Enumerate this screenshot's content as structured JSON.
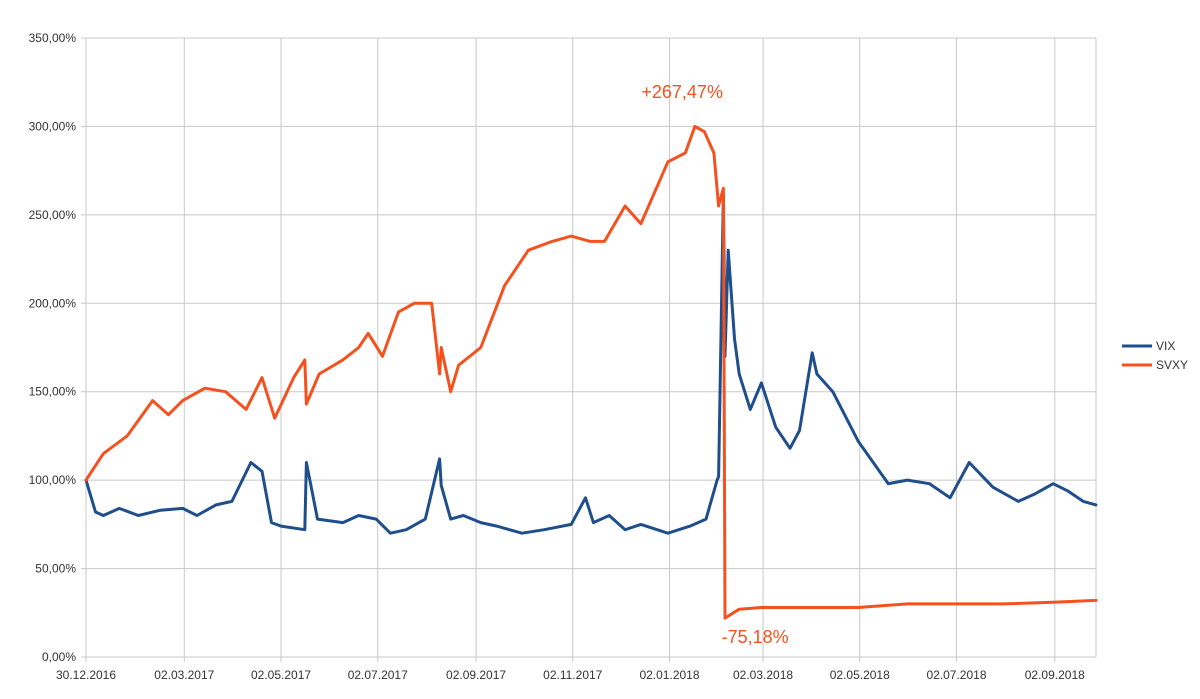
{
  "chart_data": {
    "type": "line",
    "title": "",
    "xlabel": "",
    "ylabel": "",
    "ylim": [
      0,
      350
    ],
    "y_unit": "%",
    "y_ticks": [
      0,
      50,
      100,
      150,
      200,
      250,
      300,
      350
    ],
    "y_tick_labels": [
      "0,00%",
      "50,00%",
      "100,00%",
      "150,00%",
      "200,00%",
      "250,00%",
      "300,00%",
      "350,00%"
    ],
    "x_range": [
      "2016-12-30",
      "2018-09-28"
    ],
    "x_ticks": [
      "2016-12-30",
      "2017-03-02",
      "2017-05-02",
      "2017-07-02",
      "2017-09-02",
      "2017-11-02",
      "2018-01-02",
      "2018-03-02",
      "2018-05-02",
      "2018-07-02",
      "2018-09-02"
    ],
    "x_tick_labels": [
      "30.12.2016",
      "02.03.2017",
      "02.05.2017",
      "02.07.2017",
      "02.09.2017",
      "02.11.2017",
      "02.01.2018",
      "02.03.2018",
      "02.05.2018",
      "02.07.2018",
      "02.09.2018"
    ],
    "grid": true,
    "legend_position": "right",
    "series": [
      {
        "name": "VIX",
        "color": "#1f4e8c",
        "x": [
          "2016-12-30",
          "2017-01-05",
          "2017-01-10",
          "2017-01-20",
          "2017-02-01",
          "2017-02-15",
          "2017-03-01",
          "2017-03-10",
          "2017-03-22",
          "2017-04-01",
          "2017-04-13",
          "2017-04-20",
          "2017-04-26",
          "2017-05-02",
          "2017-05-17",
          "2017-05-18",
          "2017-05-25",
          "2017-06-10",
          "2017-06-20",
          "2017-07-01",
          "2017-07-10",
          "2017-07-20",
          "2017-08-01",
          "2017-08-10",
          "2017-08-11",
          "2017-08-17",
          "2017-08-25",
          "2017-09-05",
          "2017-09-15",
          "2017-10-01",
          "2017-10-15",
          "2017-11-01",
          "2017-11-10",
          "2017-11-15",
          "2017-11-25",
          "2017-12-05",
          "2017-12-15",
          "2018-01-01",
          "2018-01-15",
          "2018-01-25",
          "2018-02-01",
          "2018-02-02",
          "2018-02-05",
          "2018-02-06",
          "2018-02-08",
          "2018-02-12",
          "2018-02-15",
          "2018-02-22",
          "2018-03-01",
          "2018-03-10",
          "2018-03-19",
          "2018-03-25",
          "2018-04-02",
          "2018-04-05",
          "2018-04-15",
          "2018-05-01",
          "2018-05-20",
          "2018-06-01",
          "2018-06-15",
          "2018-06-28",
          "2018-07-10",
          "2018-07-25",
          "2018-08-10",
          "2018-08-20",
          "2018-09-01",
          "2018-09-10",
          "2018-09-20",
          "2018-09-28"
        ],
        "values": [
          100,
          82,
          80,
          84,
          80,
          83,
          84,
          80,
          86,
          88,
          110,
          105,
          76,
          74,
          72,
          110,
          78,
          76,
          80,
          78,
          70,
          72,
          78,
          112,
          97,
          78,
          80,
          76,
          74,
          70,
          72,
          75,
          90,
          76,
          80,
          72,
          75,
          70,
          74,
          78,
          100,
          102,
          262,
          170,
          230,
          180,
          160,
          140,
          155,
          130,
          118,
          128,
          172,
          160,
          150,
          122,
          98,
          100,
          98,
          90,
          110,
          96,
          88,
          92,
          98,
          94,
          88,
          86
        ]
      },
      {
        "name": "SVXY",
        "color": "#f4511e",
        "x": [
          "2016-12-30",
          "2017-01-10",
          "2017-01-25",
          "2017-02-10",
          "2017-02-20",
          "2017-03-01",
          "2017-03-15",
          "2017-03-28",
          "2017-04-10",
          "2017-04-20",
          "2017-04-28",
          "2017-05-10",
          "2017-05-17",
          "2017-05-18",
          "2017-05-26",
          "2017-06-10",
          "2017-06-20",
          "2017-06-26",
          "2017-07-05",
          "2017-07-15",
          "2017-07-25",
          "2017-08-05",
          "2017-08-10",
          "2017-08-11",
          "2017-08-17",
          "2017-08-22",
          "2017-09-05",
          "2017-09-20",
          "2017-10-05",
          "2017-10-20",
          "2017-11-01",
          "2017-11-13",
          "2017-11-22",
          "2017-12-05",
          "2017-12-15",
          "2018-01-01",
          "2018-01-12",
          "2018-01-18",
          "2018-01-24",
          "2018-01-30",
          "2018-02-02",
          "2018-02-05",
          "2018-02-06",
          "2018-02-15",
          "2018-03-01",
          "2018-04-01",
          "2018-05-01",
          "2018-06-01",
          "2018-07-01",
          "2018-08-01",
          "2018-09-01",
          "2018-09-28"
        ],
        "values": [
          100,
          115,
          125,
          145,
          137,
          145,
          152,
          150,
          140,
          158,
          135,
          158,
          168,
          143,
          160,
          168,
          175,
          183,
          170,
          195,
          200,
          200,
          160,
          175,
          150,
          165,
          175,
          210,
          230,
          235,
          238,
          235,
          235,
          255,
          245,
          280,
          285,
          300,
          297,
          285,
          255,
          265,
          22,
          27,
          28,
          28,
          28,
          30,
          30,
          30,
          31,
          32
        ]
      }
    ],
    "annotations": [
      {
        "text": "+267,47%",
        "x": "2018-01-10",
        "y": 316,
        "color": "#f4511e"
      },
      {
        "text": "-75,18%",
        "x": "2018-02-25",
        "y": 8,
        "color": "#f4511e"
      }
    ]
  }
}
